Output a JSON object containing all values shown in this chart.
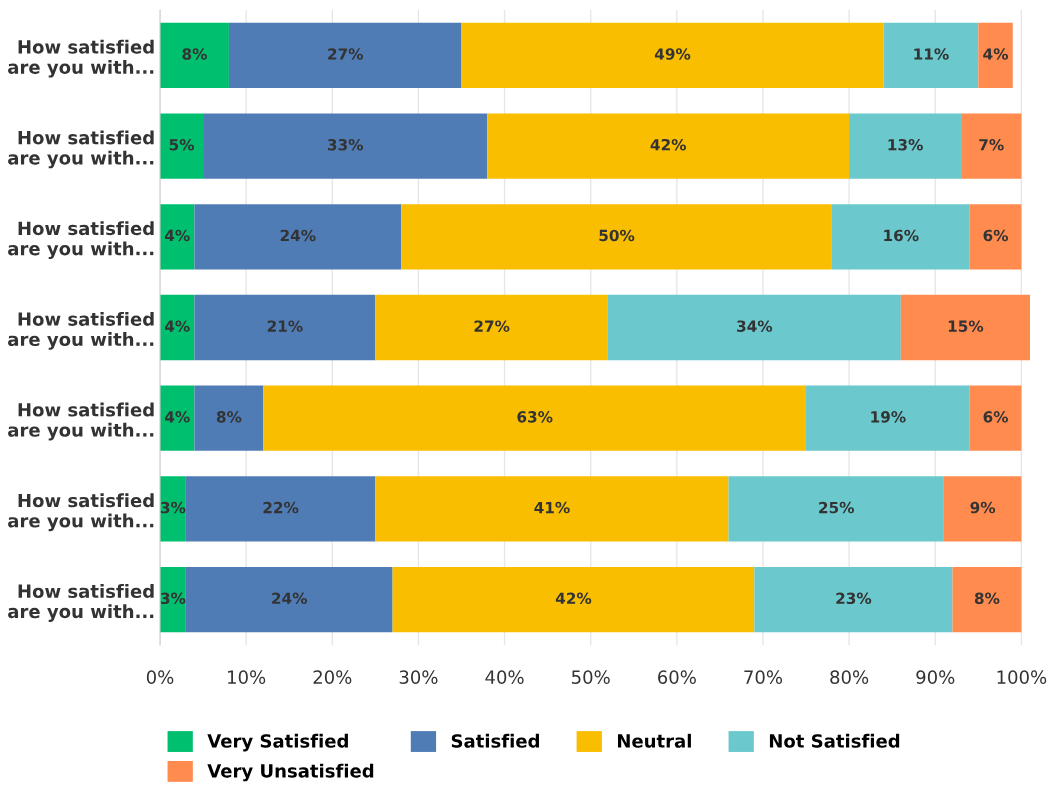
{
  "chart_data": {
    "type": "bar",
    "orientation": "horizontal",
    "stacked": true,
    "categories": [
      "How satisfied\nare you with...",
      "How satisfied\nare you with...",
      "How satisfied\nare you with...",
      "How satisfied\nare you with...",
      "How satisfied\nare you with...",
      "How satisfied\nare you with...",
      "How satisfied\nare you with..."
    ],
    "series": [
      {
        "name": "Very Satisfied",
        "color": "#00bf6f",
        "values": [
          8,
          5,
          4,
          4,
          4,
          3,
          3
        ],
        "value_labels": [
          "8%",
          "5%",
          "4%",
          "4%",
          "4%",
          "3%",
          "3%"
        ]
      },
      {
        "name": "Satisfied",
        "color": "#507cb6",
        "values": [
          27,
          33,
          24,
          21,
          8,
          22,
          24
        ],
        "value_labels": [
          "27%",
          "33%",
          "24%",
          "21%",
          "8%",
          "22%",
          "24%"
        ]
      },
      {
        "name": "Neutral",
        "color": "#f9be00",
        "values": [
          49,
          42,
          50,
          27,
          63,
          41,
          42
        ],
        "value_labels": [
          "49%",
          "42%",
          "50%",
          "27%",
          "63%",
          "41%",
          "42%"
        ]
      },
      {
        "name": "Not Satisfied",
        "color": "#6bc8cd",
        "values": [
          11,
          13,
          16,
          34,
          19,
          25,
          23
        ],
        "value_labels": [
          "11%",
          "13%",
          "16%",
          "34%",
          "19%",
          "25%",
          "23%"
        ]
      },
      {
        "name": "Very Unsatisfied",
        "color": "#ff8b4f",
        "values": [
          4,
          7,
          6,
          15,
          6,
          9,
          8
        ],
        "value_labels": [
          "4%",
          "7%",
          "6%",
          "15%",
          "6%",
          "9%",
          "8%"
        ]
      }
    ],
    "xlim": [
      0,
      101
    ],
    "xticks": [
      {
        "value": 0,
        "label": "0%"
      },
      {
        "value": 10,
        "label": "10%"
      },
      {
        "value": 20,
        "label": "20%"
      },
      {
        "value": 30,
        "label": "30%"
      },
      {
        "value": 40,
        "label": "40%"
      },
      {
        "value": 50,
        "label": "50%"
      },
      {
        "value": 60,
        "label": "60%"
      },
      {
        "value": 70,
        "label": "70%"
      },
      {
        "value": 80,
        "label": "80%"
      },
      {
        "value": 90,
        "label": "90%"
      },
      {
        "value": 100,
        "label": "100%"
      }
    ],
    "grid": "x",
    "legend": "bottom"
  }
}
